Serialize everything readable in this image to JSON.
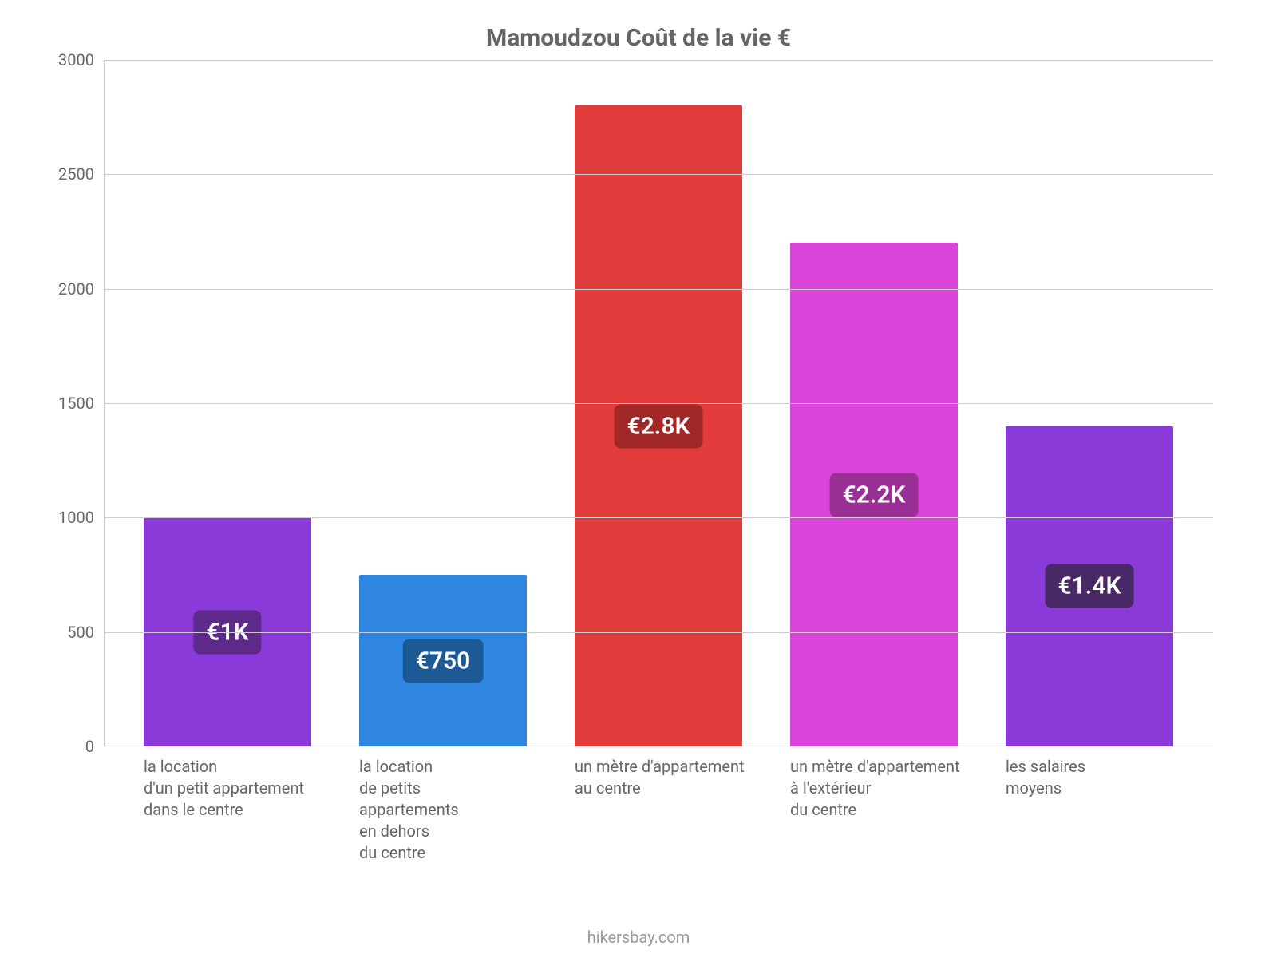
{
  "chart": {
    "type": "bar",
    "title": "Mamoudzou Coût de la vie €",
    "title_color": "#666666",
    "title_fontsize": 30,
    "background_color": "#ffffff",
    "grid_color": "#cccccc",
    "axis_color": "#cccccc",
    "tick_label_color": "#666666",
    "tick_fontsize": 20,
    "xlabel_fontsize": 20,
    "ylim": [
      0,
      3000
    ],
    "ytick_step": 500,
    "yticks": [
      0,
      500,
      1000,
      1500,
      2000,
      2500,
      3000
    ],
    "bar_width_ratio": 0.78,
    "bars": [
      {
        "label": "la location\nd'un petit appartement\ndans le centre",
        "value": 1000,
        "display": "€1K",
        "bar_color": "#8a3ad8",
        "badge_bg": "#5d2a8a"
      },
      {
        "label": "la location\nde petits\nappartements\nen dehors\ndu centre",
        "value": 750,
        "display": "€750",
        "bar_color": "#2f86e0",
        "badge_bg": "#1b5a94"
      },
      {
        "label": "un mètre d'appartement\nau centre",
        "value": 2800,
        "display": "€2.8K",
        "bar_color": "#e23b3b",
        "badge_bg": "#a22727"
      },
      {
        "label": "un mètre d'appartement\nà l'extérieur\ndu centre",
        "value": 2200,
        "display": "€2.2K",
        "bar_color": "#d944d9",
        "badge_bg": "#9a2f96"
      },
      {
        "label": "les salaires\nmoyens",
        "value": 1400,
        "display": "€1.4K",
        "bar_color": "#8a3ad8",
        "badge_bg": "#4a2a66"
      }
    ]
  },
  "footer": {
    "credit": "hikersbay.com",
    "color": "#999999",
    "fontsize": 20
  }
}
